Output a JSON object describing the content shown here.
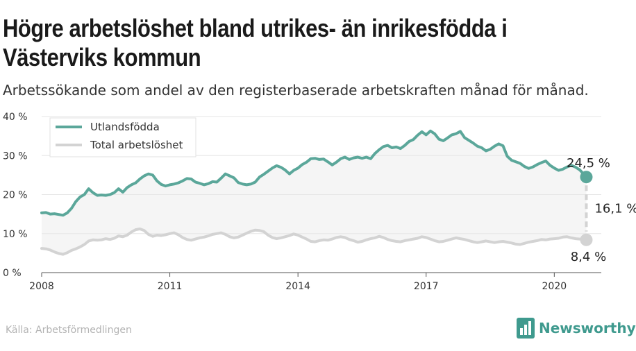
{
  "title": "Högre arbetslöshet bland utrikes- än inrikesfödda i Västerviks kommun",
  "subtitle": "Arbetssökande som andel av den registerbaserade arbetskraften månad för månad.",
  "source": "Källa: Arbetsförmedlingen",
  "brand": "Newsworthy",
  "colors": {
    "foreign": "#5ba79a",
    "total": "#d3d3d3",
    "band": "#f5f5f5",
    "gap": "#d3d3d3"
  },
  "chart_data": {
    "type": "line",
    "ylim": [
      0,
      40
    ],
    "yticks": [
      0,
      10,
      20,
      30,
      40
    ],
    "ytick_labels": [
      "0 %",
      "10 %",
      "20 %",
      "30 %",
      "40 %"
    ],
    "xlim": [
      2008,
      2021.1
    ],
    "xticks": [
      2008,
      2011,
      2014,
      2017,
      2020
    ],
    "xtick_labels": [
      "2008",
      "2011",
      "2014",
      "2017",
      "2020"
    ],
    "legend_position": "top-left",
    "series": [
      {
        "name": "Utlandsfödda",
        "color": "#5ba79a",
        "points": [
          [
            2008.0,
            15.3
          ],
          [
            2008.1,
            15.4
          ],
          [
            2008.2,
            15.0
          ],
          [
            2008.3,
            15.1
          ],
          [
            2008.4,
            14.9
          ],
          [
            2008.5,
            14.7
          ],
          [
            2008.6,
            15.3
          ],
          [
            2008.7,
            16.5
          ],
          [
            2008.8,
            18.2
          ],
          [
            2008.9,
            19.4
          ],
          [
            2009.0,
            20.0
          ],
          [
            2009.1,
            21.5
          ],
          [
            2009.2,
            20.5
          ],
          [
            2009.3,
            19.8
          ],
          [
            2009.4,
            19.9
          ],
          [
            2009.5,
            19.8
          ],
          [
            2009.6,
            20.0
          ],
          [
            2009.7,
            20.5
          ],
          [
            2009.8,
            21.5
          ],
          [
            2009.9,
            20.6
          ],
          [
            2010.0,
            21.8
          ],
          [
            2010.1,
            22.5
          ],
          [
            2010.2,
            23.0
          ],
          [
            2010.3,
            24.0
          ],
          [
            2010.4,
            24.8
          ],
          [
            2010.5,
            25.3
          ],
          [
            2010.6,
            25.0
          ],
          [
            2010.7,
            23.5
          ],
          [
            2010.8,
            22.6
          ],
          [
            2010.9,
            22.2
          ],
          [
            2011.0,
            22.5
          ],
          [
            2011.1,
            22.7
          ],
          [
            2011.2,
            23.0
          ],
          [
            2011.3,
            23.5
          ],
          [
            2011.4,
            24.1
          ],
          [
            2011.5,
            24.0
          ],
          [
            2011.6,
            23.2
          ],
          [
            2011.7,
            22.9
          ],
          [
            2011.8,
            22.5
          ],
          [
            2011.9,
            22.8
          ],
          [
            2012.0,
            23.3
          ],
          [
            2012.1,
            23.2
          ],
          [
            2012.2,
            24.2
          ],
          [
            2012.3,
            25.3
          ],
          [
            2012.4,
            24.8
          ],
          [
            2012.5,
            24.3
          ],
          [
            2012.6,
            23.1
          ],
          [
            2012.7,
            22.7
          ],
          [
            2012.8,
            22.5
          ],
          [
            2012.9,
            22.7
          ],
          [
            2013.0,
            23.2
          ],
          [
            2013.1,
            24.5
          ],
          [
            2013.2,
            25.2
          ],
          [
            2013.3,
            26.0
          ],
          [
            2013.4,
            26.8
          ],
          [
            2013.5,
            27.4
          ],
          [
            2013.6,
            27.0
          ],
          [
            2013.7,
            26.3
          ],
          [
            2013.8,
            25.3
          ],
          [
            2013.9,
            26.2
          ],
          [
            2014.0,
            26.8
          ],
          [
            2014.1,
            27.7
          ],
          [
            2014.2,
            28.3
          ],
          [
            2014.3,
            29.2
          ],
          [
            2014.4,
            29.3
          ],
          [
            2014.5,
            29.0
          ],
          [
            2014.6,
            29.1
          ],
          [
            2014.7,
            28.4
          ],
          [
            2014.8,
            27.6
          ],
          [
            2014.9,
            28.3
          ],
          [
            2015.0,
            29.2
          ],
          [
            2015.1,
            29.6
          ],
          [
            2015.2,
            29.0
          ],
          [
            2015.3,
            29.4
          ],
          [
            2015.4,
            29.6
          ],
          [
            2015.5,
            29.3
          ],
          [
            2015.6,
            29.6
          ],
          [
            2015.7,
            29.2
          ],
          [
            2015.8,
            30.5
          ],
          [
            2015.9,
            31.5
          ],
          [
            2016.0,
            32.3
          ],
          [
            2016.1,
            32.6
          ],
          [
            2016.2,
            32.0
          ],
          [
            2016.3,
            32.2
          ],
          [
            2016.4,
            31.8
          ],
          [
            2016.5,
            32.6
          ],
          [
            2016.6,
            33.6
          ],
          [
            2016.7,
            34.1
          ],
          [
            2016.8,
            35.2
          ],
          [
            2016.9,
            36.1
          ],
          [
            2017.0,
            35.3
          ],
          [
            2017.1,
            36.3
          ],
          [
            2017.2,
            35.6
          ],
          [
            2017.3,
            34.2
          ],
          [
            2017.4,
            33.8
          ],
          [
            2017.5,
            34.5
          ],
          [
            2017.6,
            35.3
          ],
          [
            2017.7,
            35.6
          ],
          [
            2017.8,
            36.2
          ],
          [
            2017.9,
            34.6
          ],
          [
            2018.0,
            33.9
          ],
          [
            2018.1,
            33.2
          ],
          [
            2018.2,
            32.4
          ],
          [
            2018.3,
            32.0
          ],
          [
            2018.4,
            31.2
          ],
          [
            2018.5,
            31.6
          ],
          [
            2018.6,
            32.4
          ],
          [
            2018.7,
            33.0
          ],
          [
            2018.8,
            32.5
          ],
          [
            2018.9,
            29.8
          ],
          [
            2019.0,
            28.8
          ],
          [
            2019.1,
            28.4
          ],
          [
            2019.2,
            28.0
          ],
          [
            2019.3,
            27.2
          ],
          [
            2019.4,
            26.7
          ],
          [
            2019.5,
            27.1
          ],
          [
            2019.6,
            27.7
          ],
          [
            2019.7,
            28.2
          ],
          [
            2019.8,
            28.6
          ],
          [
            2019.9,
            27.5
          ],
          [
            2020.0,
            26.8
          ],
          [
            2020.1,
            26.2
          ],
          [
            2020.2,
            26.5
          ],
          [
            2020.3,
            27.1
          ],
          [
            2020.4,
            27.5
          ],
          [
            2020.5,
            27.0
          ],
          [
            2020.6,
            26.3
          ],
          [
            2020.75,
            24.5
          ]
        ]
      },
      {
        "name": "Total arbetslöshet",
        "color": "#d3d3d3",
        "points": [
          [
            2008.0,
            6.2
          ],
          [
            2008.1,
            6.1
          ],
          [
            2008.2,
            5.8
          ],
          [
            2008.3,
            5.3
          ],
          [
            2008.4,
            4.9
          ],
          [
            2008.5,
            4.7
          ],
          [
            2008.6,
            5.1
          ],
          [
            2008.7,
            5.7
          ],
          [
            2008.8,
            6.1
          ],
          [
            2008.9,
            6.6
          ],
          [
            2009.0,
            7.2
          ],
          [
            2009.1,
            8.1
          ],
          [
            2009.2,
            8.4
          ],
          [
            2009.3,
            8.3
          ],
          [
            2009.4,
            8.4
          ],
          [
            2009.5,
            8.7
          ],
          [
            2009.6,
            8.5
          ],
          [
            2009.7,
            8.8
          ],
          [
            2009.8,
            9.4
          ],
          [
            2009.9,
            9.2
          ],
          [
            2010.0,
            9.6
          ],
          [
            2010.1,
            10.4
          ],
          [
            2010.2,
            11.0
          ],
          [
            2010.3,
            11.2
          ],
          [
            2010.4,
            10.8
          ],
          [
            2010.5,
            9.8
          ],
          [
            2010.6,
            9.3
          ],
          [
            2010.7,
            9.6
          ],
          [
            2010.8,
            9.5
          ],
          [
            2010.9,
            9.7
          ],
          [
            2011.0,
            10.0
          ],
          [
            2011.1,
            10.2
          ],
          [
            2011.2,
            9.7
          ],
          [
            2011.3,
            9.0
          ],
          [
            2011.4,
            8.5
          ],
          [
            2011.5,
            8.3
          ],
          [
            2011.6,
            8.6
          ],
          [
            2011.7,
            8.9
          ],
          [
            2011.8,
            9.1
          ],
          [
            2011.9,
            9.4
          ],
          [
            2012.0,
            9.8
          ],
          [
            2012.1,
            10.0
          ],
          [
            2012.2,
            10.2
          ],
          [
            2012.3,
            9.8
          ],
          [
            2012.4,
            9.2
          ],
          [
            2012.5,
            8.9
          ],
          [
            2012.6,
            9.1
          ],
          [
            2012.7,
            9.6
          ],
          [
            2012.8,
            10.1
          ],
          [
            2012.9,
            10.6
          ],
          [
            2013.0,
            10.9
          ],
          [
            2013.1,
            10.8
          ],
          [
            2013.2,
            10.5
          ],
          [
            2013.3,
            9.6
          ],
          [
            2013.4,
            9.0
          ],
          [
            2013.5,
            8.7
          ],
          [
            2013.6,
            8.9
          ],
          [
            2013.7,
            9.2
          ],
          [
            2013.8,
            9.5
          ],
          [
            2013.9,
            9.9
          ],
          [
            2014.0,
            9.6
          ],
          [
            2014.1,
            9.1
          ],
          [
            2014.2,
            8.6
          ],
          [
            2014.3,
            8.0
          ],
          [
            2014.4,
            7.9
          ],
          [
            2014.5,
            8.2
          ],
          [
            2014.6,
            8.4
          ],
          [
            2014.7,
            8.3
          ],
          [
            2014.8,
            8.6
          ],
          [
            2014.9,
            9.0
          ],
          [
            2015.0,
            9.2
          ],
          [
            2015.1,
            9.0
          ],
          [
            2015.2,
            8.5
          ],
          [
            2015.3,
            8.2
          ],
          [
            2015.4,
            7.8
          ],
          [
            2015.5,
            8.0
          ],
          [
            2015.6,
            8.4
          ],
          [
            2015.7,
            8.7
          ],
          [
            2015.8,
            8.9
          ],
          [
            2015.9,
            9.3
          ],
          [
            2016.0,
            9.0
          ],
          [
            2016.1,
            8.5
          ],
          [
            2016.2,
            8.2
          ],
          [
            2016.3,
            8.0
          ],
          [
            2016.4,
            7.9
          ],
          [
            2016.5,
            8.2
          ],
          [
            2016.6,
            8.4
          ],
          [
            2016.7,
            8.6
          ],
          [
            2016.8,
            8.8
          ],
          [
            2016.9,
            9.2
          ],
          [
            2017.0,
            9.0
          ],
          [
            2017.1,
            8.6
          ],
          [
            2017.2,
            8.2
          ],
          [
            2017.3,
            7.9
          ],
          [
            2017.4,
            8.0
          ],
          [
            2017.5,
            8.3
          ],
          [
            2017.6,
            8.6
          ],
          [
            2017.7,
            8.9
          ],
          [
            2017.8,
            8.7
          ],
          [
            2017.9,
            8.5
          ],
          [
            2018.0,
            8.2
          ],
          [
            2018.1,
            7.9
          ],
          [
            2018.2,
            7.7
          ],
          [
            2018.3,
            7.9
          ],
          [
            2018.4,
            8.1
          ],
          [
            2018.5,
            7.9
          ],
          [
            2018.6,
            7.7
          ],
          [
            2018.7,
            7.9
          ],
          [
            2018.8,
            8.0
          ],
          [
            2018.9,
            7.8
          ],
          [
            2019.0,
            7.6
          ],
          [
            2019.1,
            7.3
          ],
          [
            2019.2,
            7.2
          ],
          [
            2019.3,
            7.5
          ],
          [
            2019.4,
            7.8
          ],
          [
            2019.5,
            8.0
          ],
          [
            2019.6,
            8.2
          ],
          [
            2019.7,
            8.5
          ],
          [
            2019.8,
            8.4
          ],
          [
            2019.9,
            8.6
          ],
          [
            2020.0,
            8.7
          ],
          [
            2020.1,
            8.8
          ],
          [
            2020.2,
            9.1
          ],
          [
            2020.3,
            9.2
          ],
          [
            2020.4,
            8.9
          ],
          [
            2020.5,
            8.7
          ],
          [
            2020.6,
            8.6
          ],
          [
            2020.75,
            8.4
          ]
        ]
      }
    ],
    "end_labels": {
      "foreign": "24,5 %",
      "total": "8,4 %",
      "gap": "16,1 %"
    }
  }
}
